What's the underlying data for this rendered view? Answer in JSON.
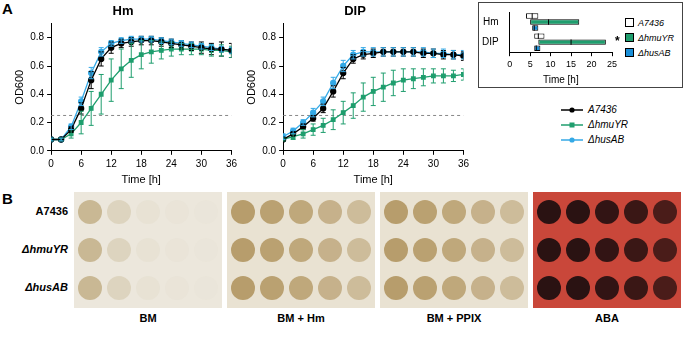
{
  "chart_data": [
    {
      "type": "line",
      "title": "Hm",
      "x_label": "Time [h]",
      "y_label": "OD600",
      "x": [
        0,
        2,
        4,
        6,
        8,
        10,
        12,
        14,
        16,
        18,
        20,
        22,
        24,
        26,
        28,
        30,
        32,
        34,
        36
      ],
      "series": [
        {
          "name": "A7436",
          "color": "#000000",
          "marker": "circle",
          "values": [
            0.08,
            0.08,
            0.15,
            0.3,
            0.5,
            0.65,
            0.73,
            0.76,
            0.77,
            0.78,
            0.78,
            0.77,
            0.76,
            0.75,
            0.74,
            0.73,
            0.72,
            0.72,
            0.71
          ],
          "errors": [
            0.01,
            0.01,
            0.02,
            0.04,
            0.06,
            0.05,
            0.04,
            0.03,
            0.03,
            0.03,
            0.03,
            0.03,
            0.03,
            0.03,
            0.03,
            0.04,
            0.04,
            0.05,
            0.05
          ]
        },
        {
          "name": "ΔhmuYR",
          "color": "#1f9e6e",
          "marker": "square",
          "values": [
            0.08,
            0.08,
            0.12,
            0.2,
            0.3,
            0.4,
            0.5,
            0.58,
            0.64,
            0.68,
            0.7,
            0.71,
            0.72,
            0.72,
            0.72,
            0.72,
            0.71,
            0.71,
            0.7
          ],
          "errors": [
            0.01,
            0.01,
            0.03,
            0.08,
            0.12,
            0.14,
            0.15,
            0.14,
            0.12,
            0.1,
            0.08,
            0.06,
            0.05,
            0.04,
            0.04,
            0.04,
            0.04,
            0.04,
            0.04
          ]
        },
        {
          "name": "ΔhusAB",
          "color": "#34a9e6",
          "marker": "circle",
          "values": [
            0.08,
            0.08,
            0.17,
            0.35,
            0.55,
            0.7,
            0.76,
            0.78,
            0.79,
            0.79,
            0.79,
            0.78,
            0.77,
            0.76,
            0.75,
            0.74,
            0.73,
            0.72,
            0.71
          ],
          "errors": [
            0.01,
            0.01,
            0.02,
            0.03,
            0.04,
            0.03,
            0.02,
            0.02,
            0.02,
            0.02,
            0.02,
            0.02,
            0.02,
            0.02,
            0.02,
            0.02,
            0.02,
            0.02,
            0.02
          ]
        }
      ],
      "xlim": [
        0,
        36
      ],
      "xticks": [
        0,
        6,
        12,
        18,
        24,
        30,
        36
      ],
      "ylim": [
        0,
        0.9
      ],
      "yticks": [
        {
          "value": 0,
          "label": "0.0"
        },
        {
          "value": 0.2,
          "label": "0.2"
        },
        {
          "value": 0.4,
          "label": "0.4"
        },
        {
          "value": 0.6,
          "label": "0.6"
        },
        {
          "value": 0.8,
          "label": "0.8"
        }
      ],
      "threshold": 0.25,
      "grid": false
    },
    {
      "type": "line",
      "title": "DIP",
      "x_label": "Time [h]",
      "y_label": "OD600",
      "x": [
        0,
        2,
        4,
        6,
        8,
        10,
        12,
        14,
        16,
        18,
        20,
        22,
        24,
        26,
        28,
        30,
        32,
        34,
        36
      ],
      "series": [
        {
          "name": "A7436",
          "color": "#000000",
          "marker": "circle",
          "values": [
            0.08,
            0.12,
            0.17,
            0.23,
            0.3,
            0.42,
            0.55,
            0.65,
            0.68,
            0.69,
            0.7,
            0.7,
            0.7,
            0.7,
            0.69,
            0.69,
            0.68,
            0.68,
            0.67
          ],
          "errors": [
            0.01,
            0.01,
            0.02,
            0.02,
            0.03,
            0.04,
            0.04,
            0.03,
            0.03,
            0.03,
            0.03,
            0.03,
            0.03,
            0.03,
            0.03,
            0.03,
            0.03,
            0.03,
            0.03
          ]
        },
        {
          "name": "ΔhmuYR",
          "color": "#1f9e6e",
          "marker": "square",
          "values": [
            0.08,
            0.1,
            0.12,
            0.15,
            0.18,
            0.22,
            0.27,
            0.32,
            0.38,
            0.42,
            0.45,
            0.48,
            0.5,
            0.51,
            0.52,
            0.53,
            0.53,
            0.53,
            0.54
          ],
          "errors": [
            0.01,
            0.02,
            0.03,
            0.04,
            0.05,
            0.07,
            0.08,
            0.09,
            0.1,
            0.1,
            0.1,
            0.09,
            0.08,
            0.07,
            0.06,
            0.05,
            0.05,
            0.04,
            0.04
          ]
        },
        {
          "name": "ΔhusAB",
          "color": "#34a9e6",
          "marker": "circle",
          "values": [
            0.1,
            0.14,
            0.2,
            0.27,
            0.35,
            0.48,
            0.6,
            0.68,
            0.7,
            0.7,
            0.7,
            0.7,
            0.7,
            0.7,
            0.7,
            0.69,
            0.69,
            0.68,
            0.68
          ],
          "errors": [
            0.02,
            0.02,
            0.02,
            0.03,
            0.03,
            0.04,
            0.04,
            0.03,
            0.03,
            0.03,
            0.03,
            0.03,
            0.03,
            0.03,
            0.03,
            0.03,
            0.03,
            0.03,
            0.03
          ]
        }
      ],
      "xlim": [
        0,
        36
      ],
      "xticks": [
        0,
        6,
        12,
        18,
        24,
        30,
        36
      ],
      "ylim": [
        0,
        0.9
      ],
      "yticks": [
        {
          "value": 0,
          "label": "0.0"
        },
        {
          "value": 0.2,
          "label": "0.2"
        },
        {
          "value": 0.4,
          "label": "0.4"
        },
        {
          "value": 0.6,
          "label": "0.6"
        },
        {
          "value": 0.8,
          "label": "0.8"
        }
      ],
      "threshold": 0.25,
      "grid": false,
      "legend": "right"
    },
    {
      "type": "bar",
      "orientation": "horizontal",
      "x_label": "Time [h]",
      "categories": [
        "Hm",
        "DIP"
      ],
      "series": [
        {
          "name": "A7436",
          "color": "#ffffff",
          "values": [
            [
              4,
              7
            ],
            [
              6,
              8.5
            ]
          ],
          "medians": [
            5.5,
            7
          ]
        },
        {
          "name": "ΔhmuYR",
          "color": "#1f9e6e",
          "values": [
            [
              5,
              17
            ],
            [
              7,
              23.5
            ]
          ],
          "medians": [
            9.5,
            15
          ]
        },
        {
          "name": "ΔhusAB",
          "color": "#1a8fd8",
          "values": [
            [
              5.5,
              7
            ],
            [
              6,
              7.5
            ]
          ],
          "medians": [
            6,
            6.5
          ]
        }
      ],
      "xlim": [
        0,
        25
      ],
      "xticks": [
        0,
        5,
        10,
        15,
        20,
        25
      ],
      "annotation": "*",
      "grid": false,
      "legend": "right"
    }
  ],
  "panel_labels": [
    "A",
    "B"
  ],
  "plates": {
    "strains": [
      "A7436",
      "ΔhmuYR",
      "ΔhusAB"
    ],
    "media": [
      "BM",
      "BM + Hm",
      "BM + PPIX",
      "ABA"
    ]
  }
}
